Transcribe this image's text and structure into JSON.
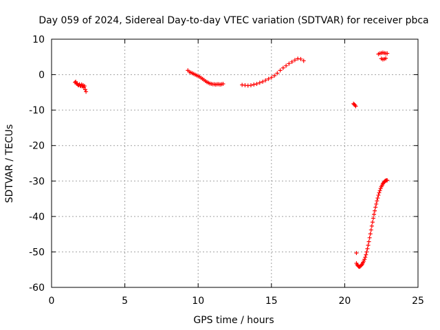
{
  "chart_data": {
    "type": "scatter",
    "title": "Day 059 of 2024, Sidereal Day-to-day VTEC variation (SDTVAR) for receiver pbca",
    "xlabel": "GPS time / hours",
    "ylabel": "SDTVAR / TECUs",
    "xlim": [
      0,
      25
    ],
    "ylim": [
      -60,
      10
    ],
    "xticks": [
      0,
      5,
      10,
      15,
      20,
      25
    ],
    "yticks": [
      -60,
      -50,
      -40,
      -30,
      -20,
      -10,
      0,
      10
    ],
    "grid": true,
    "marker": "+",
    "color": "#ff0000",
    "series": [
      {
        "name": "segment-1",
        "x": [
          1.6,
          1.65,
          1.7,
          1.75,
          1.8,
          1.85,
          1.9,
          1.95,
          2.0,
          2.05,
          2.1,
          2.15,
          2.2,
          2.25,
          2.3,
          2.35
        ],
        "y": [
          -2.2,
          -2.0,
          -2.5,
          -2.6,
          -2.9,
          -3.0,
          -2.7,
          -3.1,
          -3.2,
          -2.8,
          -3.3,
          -3.0,
          -3.6,
          -3.2,
          -4.2,
          -4.8
        ]
      },
      {
        "name": "segment-2",
        "x": [
          9.3,
          9.4,
          9.5,
          9.6,
          9.7,
          9.8,
          9.9,
          10.0,
          10.1,
          10.2,
          10.3,
          10.4,
          10.5,
          10.6,
          10.7,
          10.8,
          10.9,
          11.0,
          11.1,
          11.2,
          11.3,
          11.4,
          11.5,
          11.6,
          11.7
        ],
        "y": [
          1.2,
          0.8,
          0.6,
          0.4,
          0.2,
          0.0,
          -0.2,
          -0.4,
          -0.6,
          -0.9,
          -1.2,
          -1.5,
          -1.8,
          -2.1,
          -2.3,
          -2.5,
          -2.6,
          -2.7,
          -2.7,
          -2.8,
          -2.7,
          -2.7,
          -2.8,
          -2.7,
          -2.6
        ]
      },
      {
        "name": "segment-3",
        "x": [
          13.0,
          13.2,
          13.4,
          13.6,
          13.8,
          14.0,
          14.2,
          14.4,
          14.6,
          14.8,
          15.0,
          15.2,
          15.4,
          15.6,
          15.8,
          16.0,
          16.2,
          16.4,
          16.6,
          16.8,
          17.0,
          17.2
        ],
        "y": [
          -2.9,
          -3.0,
          -3.1,
          -3.0,
          -2.8,
          -2.6,
          -2.3,
          -2.0,
          -1.6,
          -1.2,
          -0.8,
          -0.3,
          0.4,
          1.2,
          1.9,
          2.5,
          3.1,
          3.6,
          4.1,
          4.5,
          4.4,
          3.9
        ]
      },
      {
        "name": "segment-4",
        "x": [
          20.6,
          20.65,
          20.7,
          20.75
        ],
        "y": [
          -8.2,
          -8.4,
          -8.6,
          -8.9
        ]
      },
      {
        "name": "segment-5",
        "x": [
          20.8,
          20.85,
          20.9,
          20.95,
          21.0,
          21.05,
          21.1,
          21.15,
          21.2,
          21.25,
          21.3,
          21.35,
          21.4,
          21.45,
          21.5,
          21.55,
          21.6,
          21.65,
          21.7,
          21.75,
          21.8,
          21.85,
          21.9,
          21.95,
          22.0,
          22.05,
          22.1,
          22.15,
          22.2,
          22.25,
          22.3,
          22.35,
          22.4,
          22.45,
          22.5,
          22.55,
          22.6,
          22.65,
          22.7,
          22.75,
          22.8,
          22.85,
          22.9
        ],
        "y": [
          -53.2,
          -53.6,
          -53.9,
          -54.1,
          -54.2,
          -54.1,
          -53.9,
          -53.7,
          -53.4,
          -53.0,
          -52.6,
          -52.1,
          -51.5,
          -50.8,
          -50.0,
          -49.1,
          -48.1,
          -47.1,
          -46.0,
          -44.9,
          -43.8,
          -42.7,
          -41.6,
          -40.5,
          -39.4,
          -38.4,
          -37.4,
          -36.5,
          -35.6,
          -34.8,
          -34.0,
          -33.3,
          -32.7,
          -32.1,
          -31.6,
          -31.2,
          -30.8,
          -30.5,
          -30.2,
          -30.0,
          -29.9,
          -29.8,
          -29.8
        ]
      },
      {
        "name": "segment-6",
        "x": [
          20.8
        ],
        "y": [
          -50.3
        ]
      },
      {
        "name": "segment-7",
        "x": [
          22.3,
          22.4,
          22.5,
          22.6,
          22.7,
          22.8,
          22.9,
          22.5,
          22.6,
          22.7,
          22.8
        ],
        "y": [
          5.8,
          6.0,
          6.1,
          6.2,
          6.1,
          6.0,
          6.0,
          4.5,
          4.3,
          4.4,
          4.6
        ]
      }
    ]
  }
}
